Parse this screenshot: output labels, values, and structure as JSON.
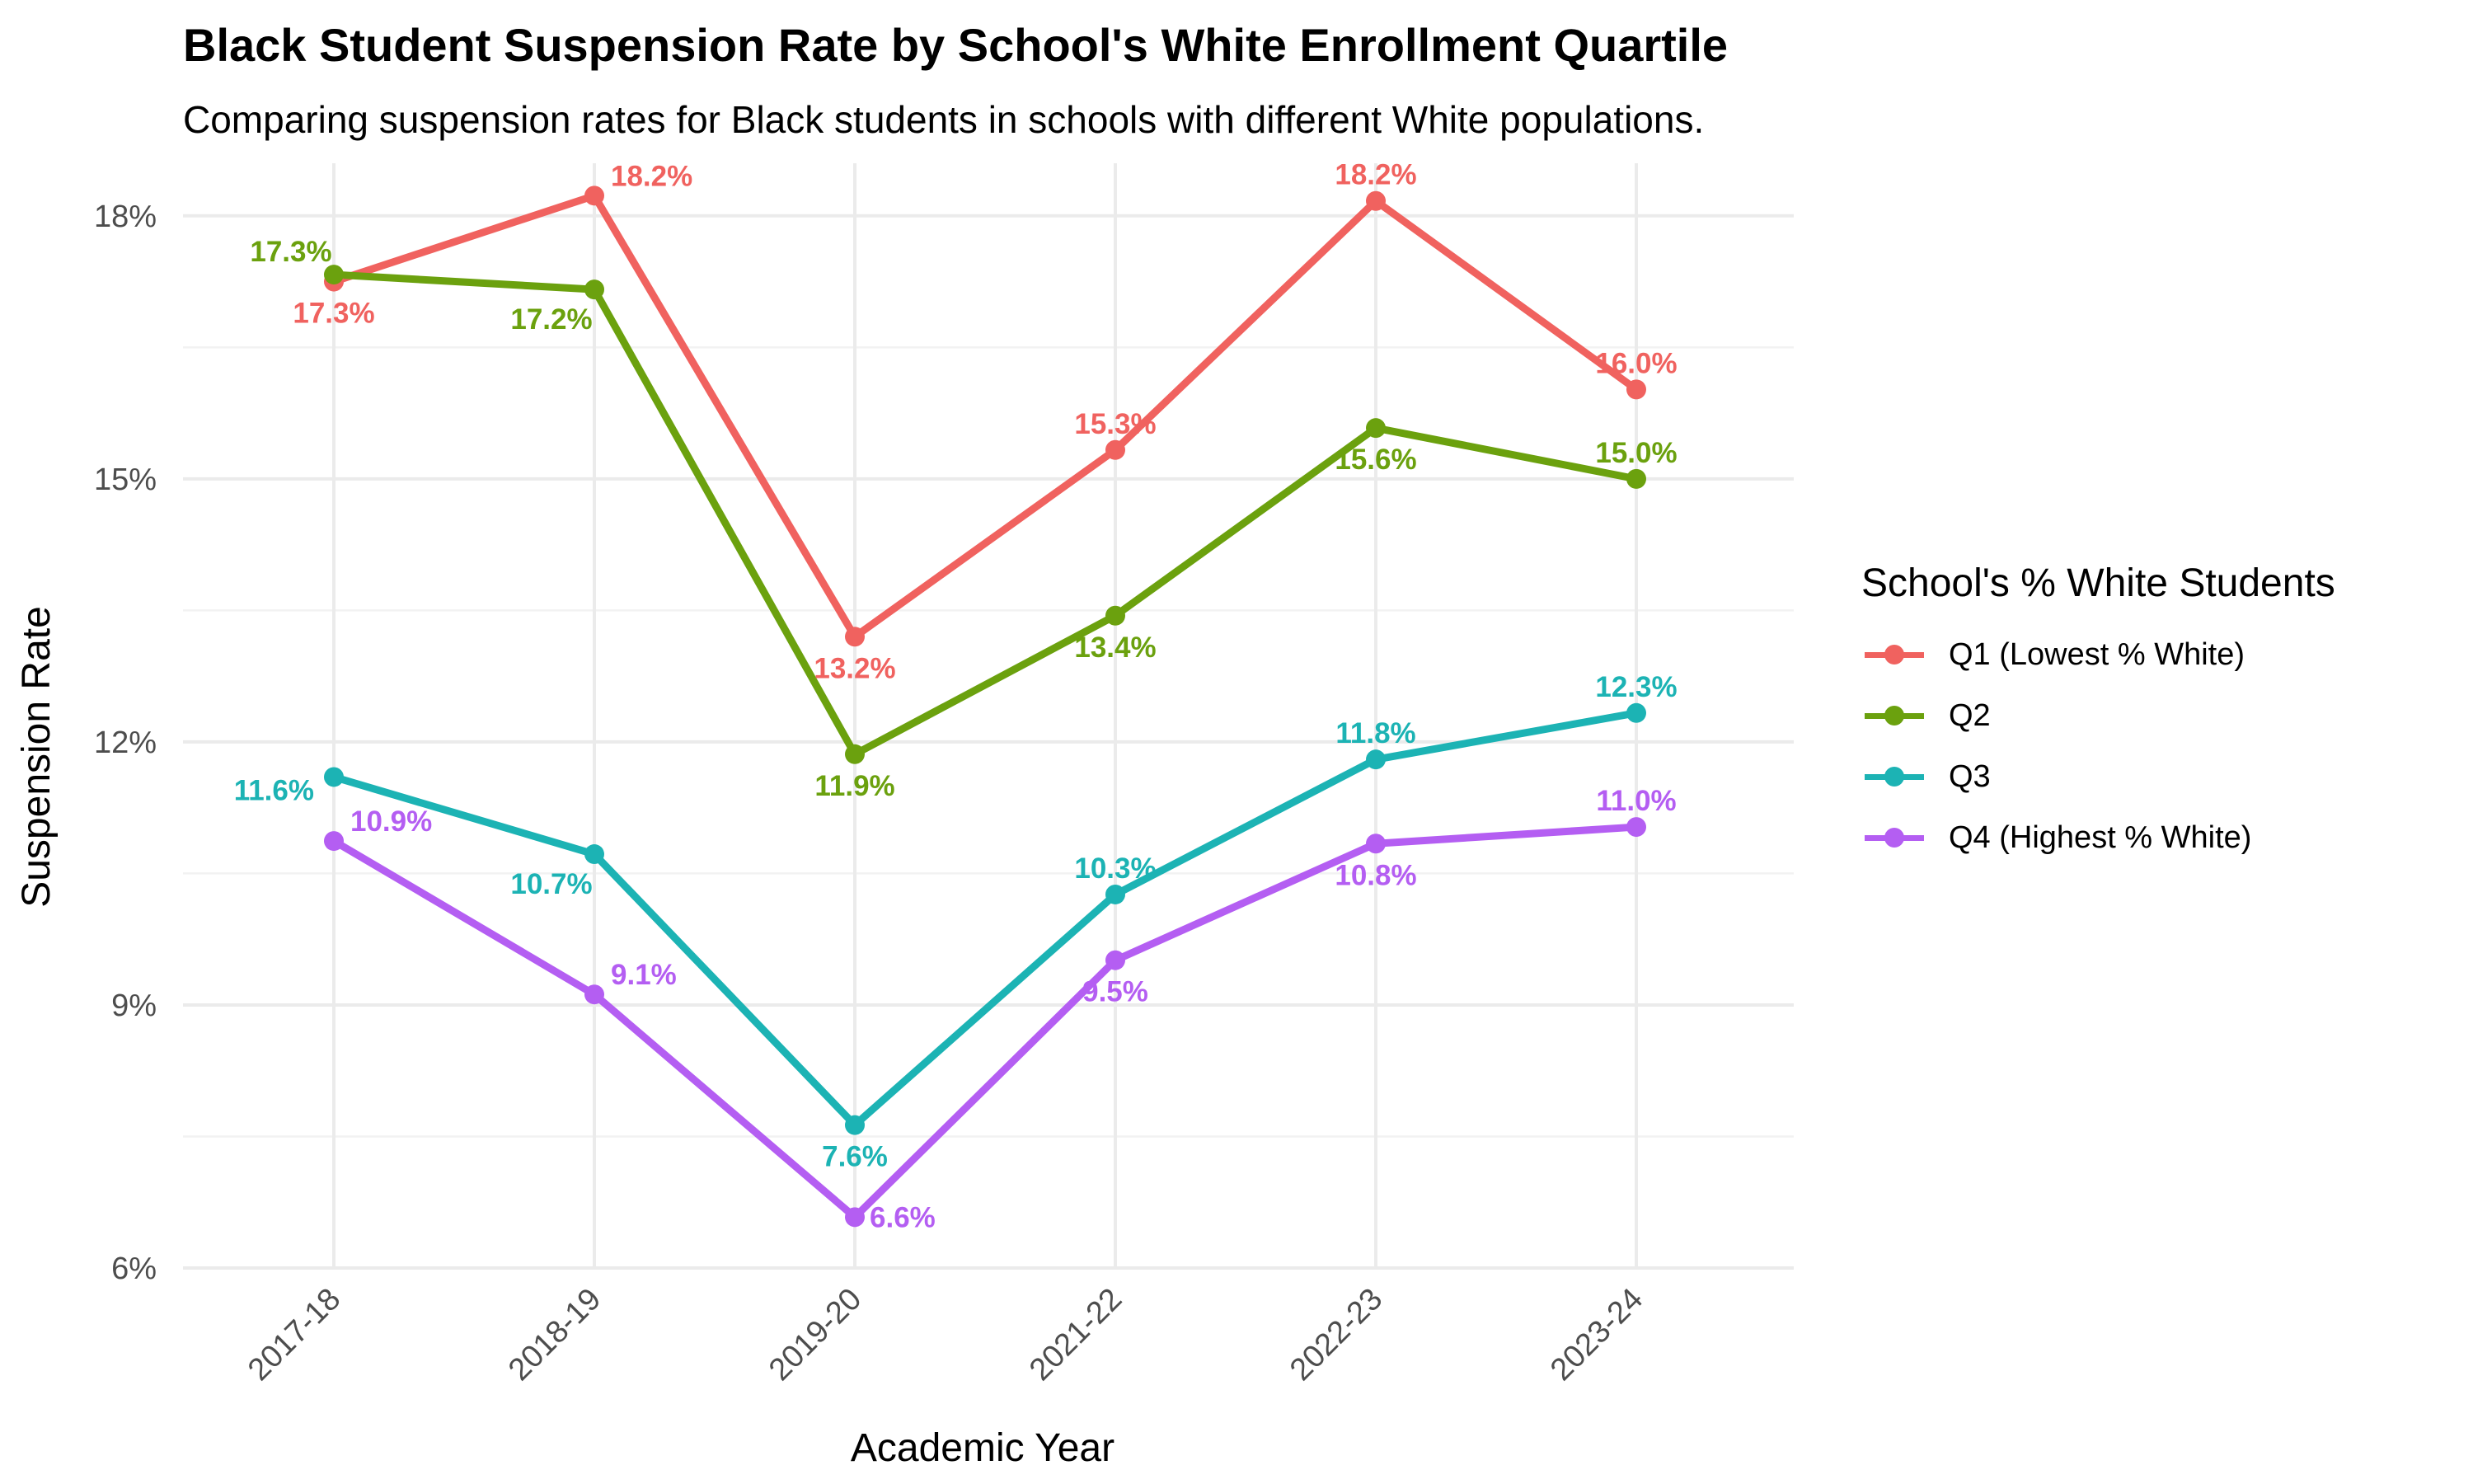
{
  "chart_data": {
    "type": "line",
    "title": "Black Student Suspension Rate by School's White Enrollment Quartile",
    "subtitle": "Comparing suspension rates for Black students in schools with different White populations.",
    "xlabel": "Academic Year",
    "ylabel": "Suspension Rate",
    "categories": [
      "2017-18",
      "2018-19",
      "2019-20",
      "2021-22",
      "2022-23",
      "2023-24"
    ],
    "ylim": [
      6,
      18.6
    ],
    "yticks": [
      6,
      9,
      12,
      15,
      18
    ],
    "ytick_labels": [
      "6%",
      "9%",
      "12%",
      "15%",
      "18%"
    ],
    "grid": true,
    "legend": {
      "title": "School's % White Students",
      "placement": "right"
    },
    "series": [
      {
        "name": "Q1 (Lowest % White)",
        "color": "#F0625F",
        "values": [
          17.25,
          18.23,
          13.2,
          15.33,
          18.17,
          16.02
        ],
        "labels": [
          "17.3%",
          "18.2%",
          "13.2%",
          "15.3%",
          "18.2%",
          "16.0%"
        ],
        "label_pos": [
          "below",
          "above-right",
          "below",
          "above",
          "above",
          "above"
        ]
      },
      {
        "name": "Q2",
        "color": "#6BA10E",
        "values": [
          17.33,
          17.16,
          11.86,
          13.44,
          15.58,
          15.0
        ],
        "labels": [
          "17.3%",
          "17.2%",
          "11.9%",
          "13.4%",
          "15.6%",
          "15.0%"
        ],
        "label_pos": [
          "above-left",
          "below-left",
          "below",
          "below",
          "below",
          "above"
        ]
      },
      {
        "name": "Q3",
        "color": "#1CB3B4",
        "values": [
          11.6,
          10.72,
          7.63,
          10.26,
          11.8,
          12.33
        ],
        "labels": [
          "11.6%",
          "10.7%",
          "7.6%",
          "10.3%",
          "11.8%",
          "12.3%"
        ],
        "label_pos": [
          "left",
          "below-left",
          "below",
          "above",
          "above",
          "above"
        ]
      },
      {
        "name": "Q4 (Highest % White)",
        "color": "#B45EF2",
        "values": [
          10.87,
          9.12,
          6.58,
          9.51,
          10.84,
          11.03
        ],
        "labels": [
          "10.9%",
          "9.1%",
          "6.6%",
          "9.5%",
          "10.8%",
          "11.0%"
        ],
        "label_pos": [
          "above-right",
          "above-right",
          "right",
          "below",
          "below",
          "above"
        ]
      }
    ]
  }
}
